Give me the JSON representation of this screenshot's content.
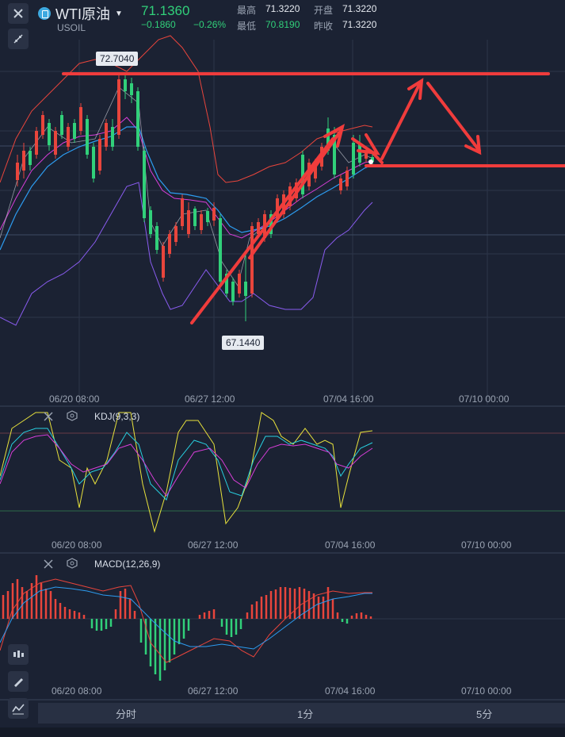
{
  "header": {
    "symbol_name": "WTI原油",
    "symbol_code": "USOIL",
    "price": "71.1360",
    "change": "−0.1860",
    "change_pct": "−0.26%",
    "stats": [
      {
        "label": "最高",
        "value": "71.3220"
      },
      {
        "label": "开盘",
        "value": "71.3220"
      },
      {
        "label": "最低",
        "value": "70.8190"
      },
      {
        "label": "昨收",
        "value": "71.3220"
      }
    ]
  },
  "main_chart": {
    "high_label": "72.7040",
    "low_label": "67.1440",
    "dates": [
      "06/20 08:00",
      "06/27 12:00",
      "07/04 16:00",
      "07/10 00:00"
    ]
  },
  "kdj": {
    "label": "KDJ(9,3,3)",
    "dates": [
      "06/20 08:00",
      "06/27 12:00",
      "07/04 16:00",
      "07/10 00:00"
    ]
  },
  "macd": {
    "label": "MACD(12,26,9)",
    "dates": [
      "06/20 08:00",
      "06/27 12:00",
      "07/04 16:00",
      "07/10 00:00"
    ]
  },
  "tabs": [
    "分时",
    "1分",
    "5分"
  ],
  "colors": {
    "up": "#e8453c",
    "down": "#31d07a",
    "accent": "#e8453c",
    "bg": "#1b2233"
  }
}
